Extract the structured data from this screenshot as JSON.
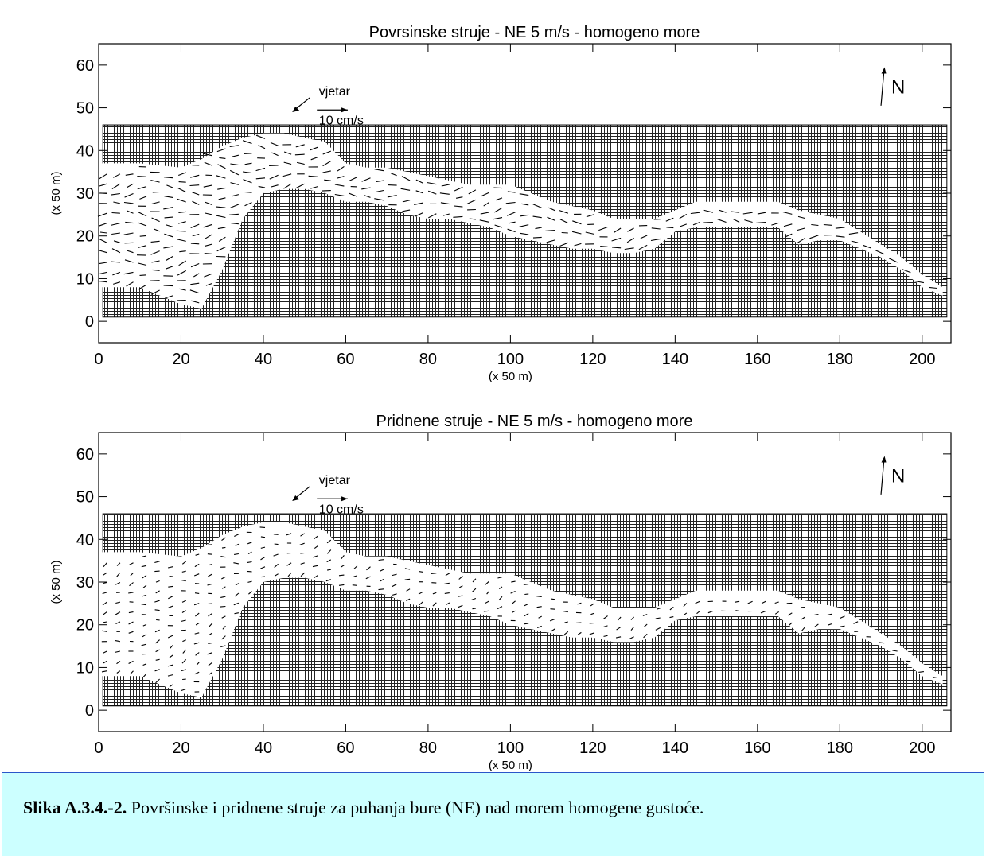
{
  "caption": {
    "label": "Slika A.3.4.-2.",
    "text": " Površinske i pridnene struje za puhanja bure (NE) nad morem homogene gustoće."
  },
  "chart_data": [
    {
      "type": "vector-field",
      "title": "Povrsinske struje - NE 5 m/s - homogeno more",
      "xlabel": "(x 50 m)",
      "ylabel": "(x 50 m)",
      "xlim": [
        0,
        207
      ],
      "ylim": [
        -5,
        65
      ],
      "xticks": [
        0,
        20,
        40,
        60,
        80,
        100,
        120,
        140,
        160,
        180,
        200
      ],
      "yticks": [
        0,
        10,
        20,
        30,
        40,
        50,
        60
      ],
      "wind_label": "vjetar",
      "scale_label": "10 cm/s",
      "north_label": "N",
      "direction_deg": 183,
      "length_scale": 1.0
    },
    {
      "type": "vector-field",
      "title": "Pridnene struje - NE 5 m/s - homogeno more",
      "xlabel": "(x 50 m)",
      "ylabel": "(x 50 m)",
      "xlim": [
        0,
        207
      ],
      "ylim": [
        -5,
        65
      ],
      "xticks": [
        0,
        20,
        40,
        60,
        80,
        100,
        120,
        140,
        160,
        180,
        200
      ],
      "yticks": [
        0,
        10,
        20,
        30,
        40,
        50,
        60
      ],
      "wind_label": "vjetar",
      "scale_label": "10 cm/s",
      "north_label": "N",
      "direction_deg": 200,
      "length_scale": 0.55
    }
  ],
  "sea_channel": {
    "columns": [
      0,
      10,
      20,
      25,
      30,
      35,
      40,
      45,
      50,
      55,
      60,
      65,
      70,
      75,
      80,
      85,
      90,
      95,
      100,
      105,
      110,
      115,
      120,
      125,
      130,
      135,
      140,
      145,
      150,
      155,
      160,
      165,
      170,
      175,
      180,
      185,
      190,
      195,
      200,
      205
    ],
    "bottom": [
      8,
      8,
      4,
      3,
      12,
      24,
      30,
      31,
      31,
      30,
      28,
      28,
      27,
      25,
      24,
      24,
      23,
      22,
      20,
      19,
      18,
      17,
      17,
      16,
      16,
      17,
      21,
      22,
      22,
      22,
      22,
      22,
      18,
      19,
      19,
      17,
      15,
      12,
      8,
      6
    ],
    "top": [
      37,
      37,
      36,
      38,
      41,
      43,
      44,
      44,
      43,
      42,
      37,
      36,
      36,
      35,
      34,
      33,
      32,
      32,
      32,
      30,
      28,
      27,
      26,
      24,
      24,
      24,
      26,
      28,
      28,
      28,
      28,
      28,
      26,
      25,
      24,
      21,
      18,
      15,
      11,
      8
    ]
  }
}
